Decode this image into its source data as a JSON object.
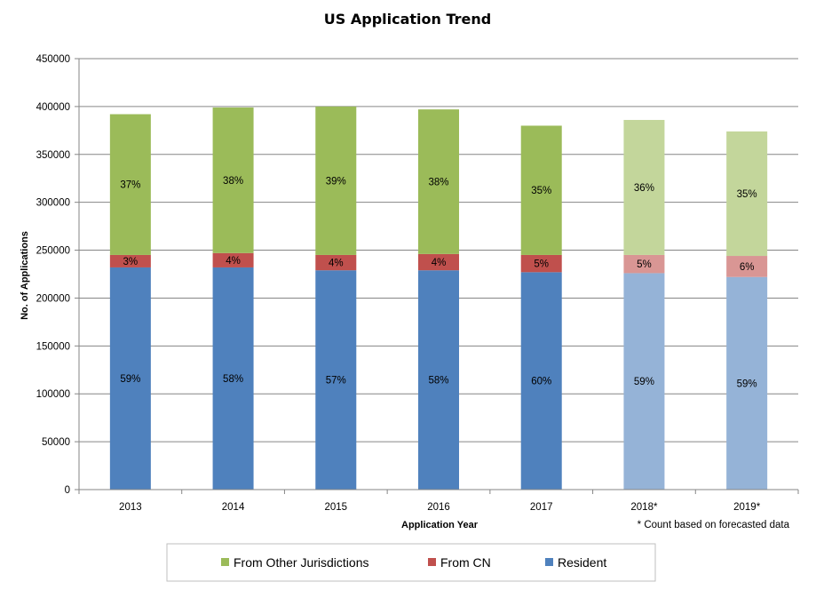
{
  "chart_data": {
    "type": "bar",
    "stacked": true,
    "title": "US Application Trend",
    "xlabel": "Application Year",
    "ylabel": "No. of Applications",
    "ylim": [
      0,
      450000
    ],
    "yticks": [
      "0",
      "50000",
      "100000",
      "150000",
      "200000",
      "250000",
      "300000",
      "350000",
      "400000",
      "450000"
    ],
    "categories": [
      "2013",
      "2014",
      "2015",
      "2016",
      "2017",
      "2018*",
      "2019*"
    ],
    "forecast": [
      false,
      false,
      false,
      false,
      false,
      true,
      true
    ],
    "note": "* Count based on forecasted data",
    "legend_position": "bottom",
    "series": [
      {
        "name": "Resident",
        "color": "#4f81bd",
        "forecast_color": "#95b3d7",
        "values": [
          232000,
          232000,
          229000,
          229000,
          227000,
          226000,
          222000
        ],
        "labels": [
          "59%",
          "58%",
          "57%",
          "58%",
          "60%",
          "59%",
          "59%"
        ]
      },
      {
        "name": "From CN",
        "color": "#c0504d",
        "forecast_color": "#d99694",
        "values": [
          13000,
          15000,
          16000,
          17000,
          18000,
          19000,
          22000
        ],
        "labels": [
          "3%",
          "4%",
          "4%",
          "4%",
          "5%",
          "5%",
          "6%"
        ]
      },
      {
        "name": "From Other Jurisdictions",
        "color": "#9bbb59",
        "forecast_color": "#c3d69b",
        "values": [
          147000,
          152000,
          155000,
          151000,
          135000,
          141000,
          130000
        ],
        "labels": [
          "37%",
          "38%",
          "39%",
          "38%",
          "35%",
          "36%",
          "35%"
        ]
      }
    ],
    "legend_order": [
      "From Other Jurisdictions",
      "From CN",
      "Resident"
    ]
  }
}
